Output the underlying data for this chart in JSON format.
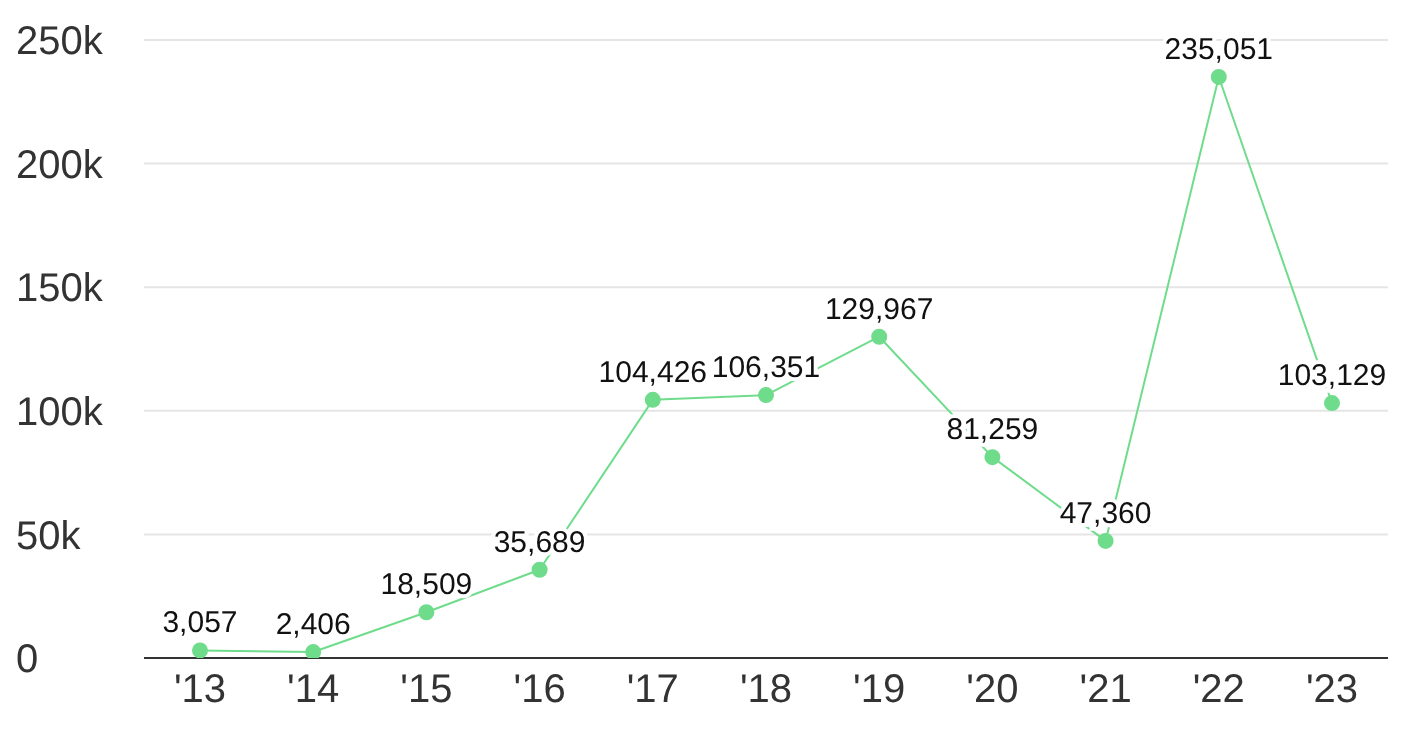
{
  "chart_data": {
    "type": "line",
    "categories": [
      "'13",
      "'14",
      "'15",
      "'16",
      "'17",
      "'18",
      "'19",
      "'20",
      "'21",
      "'22",
      "'23"
    ],
    "series": [
      {
        "color": "#6fdc8c",
        "values": [
          3057,
          2406,
          18509,
          35689,
          104426,
          106351,
          129967,
          81259,
          47360,
          235051,
          103129
        ],
        "value_labels": [
          "3,057",
          "2,406",
          "18,509",
          "35,689",
          "104,426",
          "106,351",
          "129,967",
          "81,259",
          "47,360",
          "235,051",
          "103,129"
        ]
      }
    ],
    "ylim": [
      0,
      250000
    ],
    "yticks": [
      {
        "value": 0,
        "label": "0"
      },
      {
        "value": 50000,
        "label": "50k"
      },
      {
        "value": 100000,
        "label": "100k"
      },
      {
        "value": 150000,
        "label": "150k"
      },
      {
        "value": 200000,
        "label": "200k"
      },
      {
        "value": 250000,
        "label": "250k"
      }
    ],
    "grid": "y",
    "marker": "circle",
    "legend": false
  }
}
